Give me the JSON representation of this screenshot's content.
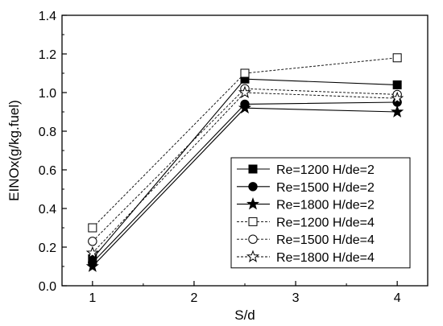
{
  "chart_data": {
    "type": "line",
    "xlabel": "S/d",
    "ylabel": "EINOx(g/kg.fuel)",
    "xlim": [
      0.7,
      4.3
    ],
    "ylim": [
      0.0,
      1.4
    ],
    "xticks": [
      1,
      2,
      3,
      4
    ],
    "yticks": [
      0.0,
      0.2,
      0.4,
      0.6,
      0.8,
      1.0,
      1.2,
      1.4
    ],
    "x": [
      1,
      2.5,
      4
    ],
    "legend_position": "bottom-right",
    "grid": false,
    "series": [
      {
        "name": "Re=1200 H/de=2",
        "values": [
          0.14,
          1.07,
          1.04
        ],
        "marker": "square",
        "fill": "filled",
        "line": "solid"
      },
      {
        "name": "Re=1500 H/de=2",
        "values": [
          0.12,
          0.94,
          0.95
        ],
        "marker": "circle",
        "fill": "filled",
        "line": "solid"
      },
      {
        "name": "Re=1800 H/de=2",
        "values": [
          0.1,
          0.92,
          0.9
        ],
        "marker": "star",
        "fill": "filled",
        "line": "solid"
      },
      {
        "name": "Re=1200 H/de=4",
        "values": [
          0.3,
          1.1,
          1.18
        ],
        "marker": "square",
        "fill": "open",
        "line": "dashed"
      },
      {
        "name": "Re=1500 H/de=4",
        "values": [
          0.23,
          1.02,
          0.99
        ],
        "marker": "circle",
        "fill": "open",
        "line": "dashed"
      },
      {
        "name": "Re=1800 H/de=4",
        "values": [
          0.17,
          1.0,
          0.97
        ],
        "marker": "star",
        "fill": "open",
        "line": "dashed"
      }
    ]
  }
}
